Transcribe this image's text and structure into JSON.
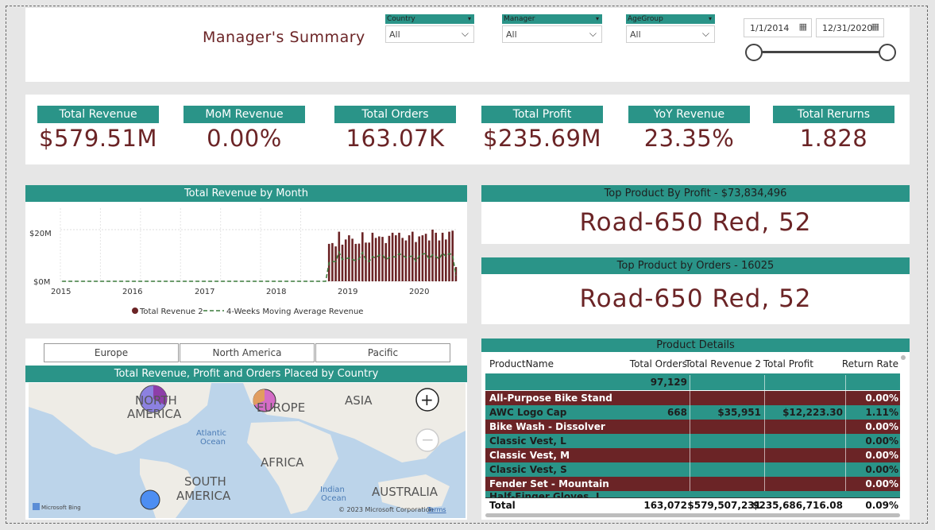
{
  "header": {
    "title": "Manager's Summary",
    "slicers": [
      {
        "label": "Country",
        "value": "All"
      },
      {
        "label": "Manager",
        "value": "All"
      },
      {
        "label": "AgeGroup",
        "value": "All"
      }
    ],
    "date_start": "1/1/2014",
    "date_end": "12/31/2020"
  },
  "kpis": [
    {
      "label": "Total Revenue",
      "value": "$579.51M"
    },
    {
      "label": "MoM Revenue",
      "value": "0.00%"
    },
    {
      "label": "Total Orders",
      "value": "163.07K"
    },
    {
      "label": "Total Profit",
      "value": "$235.69M"
    },
    {
      "label": "YoY Revenue",
      "value": "23.35%"
    },
    {
      "label": "Total Rerurns",
      "value": "1.828"
    }
  ],
  "revenue_chart": {
    "title": "Total Revenue by Month",
    "y_ticks": [
      "$20M",
      "$0M"
    ],
    "x_ticks": [
      "2015",
      "2016",
      "2017",
      "2018",
      "2019",
      "2020"
    ],
    "legend": [
      "Total Revenue 2",
      "4-Weeks Moving Average Revenue"
    ]
  },
  "chart_data": {
    "type": "bar",
    "title": "Total Revenue by Month",
    "xlabel": "",
    "ylabel": "",
    "ylim": [
      0,
      25
    ],
    "ylabel_unit": "$M",
    "months_start": "2015-01",
    "series": [
      {
        "name": "Total Revenue 2",
        "type": "bar",
        "values": [
          0,
          0,
          0,
          0,
          0,
          0,
          0,
          0,
          0,
          0,
          0,
          0,
          0,
          0,
          0,
          0,
          0,
          0,
          0,
          0,
          0,
          0,
          0,
          0,
          0,
          0,
          0,
          0,
          0,
          0,
          0,
          0,
          0,
          0,
          0,
          0,
          0,
          0,
          0,
          0,
          0,
          0,
          0,
          0,
          0,
          0,
          0,
          0,
          0,
          0,
          0,
          0,
          0,
          0,
          0,
          0,
          0,
          0,
          0,
          0,
          0,
          0,
          0,
          0,
          0,
          0,
          0,
          0,
          0,
          0,
          0,
          0,
          0,
          0,
          0,
          0,
          0,
          0,
          0,
          0,
          14.5,
          14.8,
          13.5,
          19.2,
          14.2,
          16.2,
          17.8,
          16.5,
          14.5,
          14.6,
          19.0,
          15.0,
          15.0,
          18.8,
          16.8,
          17.4,
          17.2,
          14.8,
          17.6,
          18.8,
          17.8,
          18.8,
          16.8,
          15.8,
          17.8,
          19.2,
          15.2,
          17.4,
          17.8,
          18.4,
          15.8,
          20.0,
          18.8,
          15.8,
          18.8,
          16.2,
          19.2,
          19.6,
          5.5
        ]
      },
      {
        "name": "4-Weeks Moving Average Revenue",
        "type": "line"
      }
    ]
  },
  "top_profit": {
    "title": "Top Product By Profit - $73,834,496",
    "value": "Road-650 Red, 52"
  },
  "top_orders": {
    "title": "Top Product by Orders - 16025",
    "value": "Road-650 Red, 52"
  },
  "map": {
    "tabs": [
      "Europe",
      "North America",
      "Pacific"
    ],
    "title": "Total Revenue, Profit and Orders Placed by Country",
    "labels": [
      "NORTH AMERICA",
      "EUROPE",
      "ASIA",
      "AFRICA",
      "SOUTH AMERICA",
      "AUSTRALIA",
      "Atlantic Ocean",
      "Indian Ocean"
    ],
    "bing": "Microsoft Bing",
    "copyright": "© 2023 Microsoft Corporation",
    "terms": "Terms"
  },
  "product_details": {
    "title": "Product Details",
    "columns": [
      "ProductName",
      "Total Orders",
      "Total Revenue 2",
      "Total Profit",
      "Return Rate"
    ],
    "rows": [
      {
        "name": "",
        "orders": "97,129",
        "revenue": "",
        "profit": "",
        "rate": ""
      },
      {
        "name": "All-Purpose Bike Stand",
        "orders": "",
        "revenue": "",
        "profit": "",
        "rate": "0.00%"
      },
      {
        "name": "AWC Logo Cap",
        "orders": "668",
        "revenue": "$35,951",
        "profit": "$12,223.30",
        "rate": "1.11%"
      },
      {
        "name": "Bike Wash - Dissolver",
        "orders": "",
        "revenue": "",
        "profit": "",
        "rate": "0.00%"
      },
      {
        "name": "Classic Vest, L",
        "orders": "",
        "revenue": "",
        "profit": "",
        "rate": "0.00%"
      },
      {
        "name": "Classic Vest, M",
        "orders": "",
        "revenue": "",
        "profit": "",
        "rate": "0.00%"
      },
      {
        "name": "Classic Vest, S",
        "orders": "",
        "revenue": "",
        "profit": "",
        "rate": "0.00%"
      },
      {
        "name": "Fender Set - Mountain",
        "orders": "",
        "revenue": "",
        "profit": "",
        "rate": "0.00%"
      },
      {
        "name": "Half-Finger Gloves, L",
        "orders": "",
        "revenue": "",
        "profit": "",
        "rate": ""
      }
    ],
    "total": {
      "name": "Total",
      "orders": "163,072",
      "revenue": "$579,507,231",
      "profit": "$235,686,716.08",
      "rate": "0.09%"
    }
  },
  "colors": {
    "teal": "#2a9488",
    "maroon": "#6b2426",
    "line": "#3c7a3c"
  }
}
